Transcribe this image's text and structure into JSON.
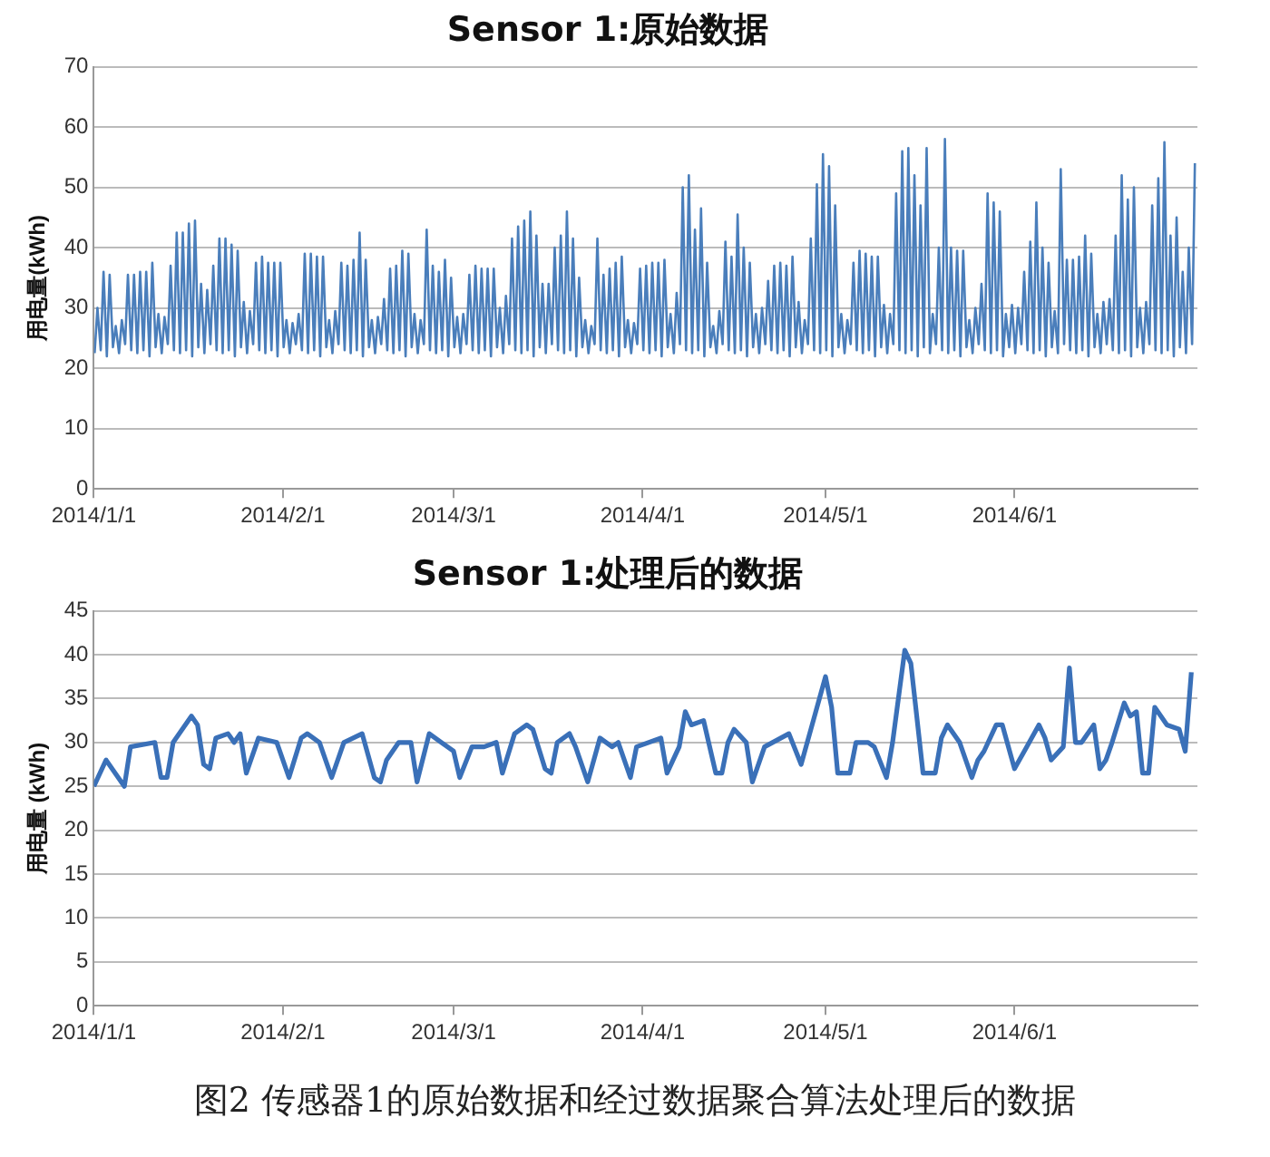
{
  "chart_data": [
    {
      "type": "line",
      "title": "Sensor 1:原始数据",
      "ylabel": "用电量(kWh)",
      "xlim": [
        "2014-01-01",
        "2014-07-01"
      ],
      "xticks": [
        {
          "value": "2014-01-01",
          "label": "2014/1/1"
        },
        {
          "value": "2014-02-01",
          "label": "2014/2/1"
        },
        {
          "value": "2014-03-01",
          "label": "2014/3/1"
        },
        {
          "value": "2014-04-01",
          "label": "2014/4/1"
        },
        {
          "value": "2014-05-01",
          "label": "2014/5/1"
        },
        {
          "value": "2014-06-01",
          "label": "2014/6/1"
        }
      ],
      "ylim": [
        0,
        70
      ],
      "yticks": [
        0,
        10,
        20,
        30,
        40,
        50,
        60,
        70
      ],
      "grid": "y",
      "marker": "none",
      "line_style": "solid",
      "series": [
        {
          "color": "#4a7ebb",
          "x": [
            "2014-01-01T03:00",
            "2014-01-01T14:00",
            "2014-01-02T03:00",
            "2014-01-02T14:00",
            "2014-01-03T03:00",
            "2014-01-03T14:00",
            "2014-01-04T03:00",
            "2014-01-04T14:00",
            "2014-01-05T03:00",
            "2014-01-05T14:00",
            "2014-01-06T03:00",
            "2014-01-06T14:00",
            "2014-01-07T03:00",
            "2014-01-07T14:00",
            "2014-01-08T03:00",
            "2014-01-08T14:00",
            "2014-01-09T03:00",
            "2014-01-09T14:00",
            "2014-01-10T03:00",
            "2014-01-10T14:00",
            "2014-01-11T03:00",
            "2014-01-11T14:00",
            "2014-01-12T03:00",
            "2014-01-12T14:00",
            "2014-01-13T03:00",
            "2014-01-13T14:00",
            "2014-01-14T03:00",
            "2014-01-14T14:00",
            "2014-01-15T03:00",
            "2014-01-15T14:00",
            "2014-01-16T03:00",
            "2014-01-16T14:00",
            "2014-01-17T03:00",
            "2014-01-17T14:00",
            "2014-01-18T03:00",
            "2014-01-18T14:00",
            "2014-01-19T03:00",
            "2014-01-19T14:00",
            "2014-01-20T03:00",
            "2014-01-20T14:00",
            "2014-01-21T03:00",
            "2014-01-21T14:00",
            "2014-01-22T03:00",
            "2014-01-22T14:00",
            "2014-01-23T03:00",
            "2014-01-23T14:00",
            "2014-01-24T03:00",
            "2014-01-24T14:00",
            "2014-01-25T03:00",
            "2014-01-25T14:00",
            "2014-01-26T03:00",
            "2014-01-26T14:00",
            "2014-01-27T03:00",
            "2014-01-27T14:00",
            "2014-01-28T03:00",
            "2014-01-28T14:00",
            "2014-01-29T03:00",
            "2014-01-29T14:00",
            "2014-01-30T03:00",
            "2014-01-30T14:00",
            "2014-01-31T03:00",
            "2014-01-31T14:00",
            "2014-02-01T03:00",
            "2014-02-01T14:00",
            "2014-02-02T03:00",
            "2014-02-02T14:00",
            "2014-02-03T03:00",
            "2014-02-03T14:00",
            "2014-02-04T03:00",
            "2014-02-04T14:00",
            "2014-02-05T03:00",
            "2014-02-05T14:00",
            "2014-02-06T03:00",
            "2014-02-06T14:00",
            "2014-02-07T03:00",
            "2014-02-07T14:00",
            "2014-02-08T03:00",
            "2014-02-08T14:00",
            "2014-02-09T03:00",
            "2014-02-09T14:00",
            "2014-02-10T03:00",
            "2014-02-10T14:00",
            "2014-02-11T03:00",
            "2014-02-11T14:00",
            "2014-02-12T03:00",
            "2014-02-12T14:00",
            "2014-02-13T03:00",
            "2014-02-13T14:00",
            "2014-02-14T03:00",
            "2014-02-14T14:00",
            "2014-02-15T03:00",
            "2014-02-15T14:00",
            "2014-02-16T03:00",
            "2014-02-16T14:00",
            "2014-02-17T03:00",
            "2014-02-17T14:00",
            "2014-02-18T03:00",
            "2014-02-18T14:00",
            "2014-02-19T03:00",
            "2014-02-19T14:00",
            "2014-02-20T03:00",
            "2014-02-20T14:00",
            "2014-02-21T03:00",
            "2014-02-21T14:00",
            "2014-02-22T03:00",
            "2014-02-22T14:00",
            "2014-02-23T03:00",
            "2014-02-23T14:00",
            "2014-02-24T03:00",
            "2014-02-24T14:00",
            "2014-02-25T03:00",
            "2014-02-25T14:00",
            "2014-02-26T03:00",
            "2014-02-26T14:00",
            "2014-02-27T03:00",
            "2014-02-27T14:00",
            "2014-02-28T03:00",
            "2014-02-28T14:00",
            "2014-03-01T03:00",
            "2014-03-01T14:00",
            "2014-03-02T03:00",
            "2014-03-02T14:00",
            "2014-03-03T03:00",
            "2014-03-03T14:00",
            "2014-03-04T03:00",
            "2014-03-04T14:00",
            "2014-03-05T03:00",
            "2014-03-05T14:00",
            "2014-03-06T03:00",
            "2014-03-06T14:00",
            "2014-03-07T03:00",
            "2014-03-07T14:00",
            "2014-03-08T03:00",
            "2014-03-08T14:00",
            "2014-03-09T03:00",
            "2014-03-09T14:00",
            "2014-03-10T03:00",
            "2014-03-10T14:00",
            "2014-03-11T03:00",
            "2014-03-11T14:00",
            "2014-03-12T03:00",
            "2014-03-12T14:00",
            "2014-03-13T03:00",
            "2014-03-13T14:00",
            "2014-03-14T03:00",
            "2014-03-14T14:00",
            "2014-03-15T03:00",
            "2014-03-15T14:00",
            "2014-03-16T03:00",
            "2014-03-16T14:00",
            "2014-03-17T03:00",
            "2014-03-17T14:00",
            "2014-03-18T03:00",
            "2014-03-18T14:00",
            "2014-03-19T03:00",
            "2014-03-19T14:00",
            "2014-03-20T03:00",
            "2014-03-20T14:00",
            "2014-03-21T03:00",
            "2014-03-21T14:00",
            "2014-03-22T03:00",
            "2014-03-22T14:00",
            "2014-03-23T03:00",
            "2014-03-23T14:00",
            "2014-03-24T03:00",
            "2014-03-24T14:00",
            "2014-03-25T03:00",
            "2014-03-25T14:00",
            "2014-03-26T03:00",
            "2014-03-26T14:00",
            "2014-03-27T03:00",
            "2014-03-27T14:00",
            "2014-03-28T03:00",
            "2014-03-28T14:00",
            "2014-03-29T03:00",
            "2014-03-29T14:00",
            "2014-03-30T03:00",
            "2014-03-30T14:00",
            "2014-03-31T03:00",
            "2014-03-31T14:00",
            "2014-04-01T03:00",
            "2014-04-01T14:00",
            "2014-04-02T03:00",
            "2014-04-02T14:00",
            "2014-04-03T03:00",
            "2014-04-03T14:00",
            "2014-04-04T03:00",
            "2014-04-04T14:00",
            "2014-04-05T03:00",
            "2014-04-05T14:00",
            "2014-04-06T03:00",
            "2014-04-06T14:00",
            "2014-04-07T03:00",
            "2014-04-07T14:00",
            "2014-04-08T03:00",
            "2014-04-08T14:00",
            "2014-04-09T03:00",
            "2014-04-09T14:00",
            "2014-04-10T03:00",
            "2014-04-10T14:00",
            "2014-04-11T03:00",
            "2014-04-11T14:00",
            "2014-04-12T03:00",
            "2014-04-12T14:00",
            "2014-04-13T03:00",
            "2014-04-13T14:00",
            "2014-04-14T03:00",
            "2014-04-14T14:00",
            "2014-04-15T03:00",
            "2014-04-15T14:00",
            "2014-04-16T03:00",
            "2014-04-16T14:00",
            "2014-04-17T03:00",
            "2014-04-17T14:00",
            "2014-04-18T03:00",
            "2014-04-18T14:00",
            "2014-04-19T03:00",
            "2014-04-19T14:00",
            "2014-04-20T03:00",
            "2014-04-20T14:00",
            "2014-04-21T03:00",
            "2014-04-21T14:00",
            "2014-04-22T03:00",
            "2014-04-22T14:00",
            "2014-04-23T03:00",
            "2014-04-23T14:00",
            "2014-04-24T03:00",
            "2014-04-24T14:00",
            "2014-04-25T03:00",
            "2014-04-25T14:00",
            "2014-04-26T03:00",
            "2014-04-26T14:00",
            "2014-04-27T03:00",
            "2014-04-27T14:00",
            "2014-04-28T03:00",
            "2014-04-28T14:00",
            "2014-04-29T03:00",
            "2014-04-29T14:00",
            "2014-04-30T03:00",
            "2014-04-30T14:00",
            "2014-05-01T03:00",
            "2014-05-01T14:00",
            "2014-05-02T03:00",
            "2014-05-02T14:00",
            "2014-05-03T03:00",
            "2014-05-03T14:00",
            "2014-05-04T03:00",
            "2014-05-04T14:00",
            "2014-05-05T03:00",
            "2014-05-05T14:00",
            "2014-05-06T03:00",
            "2014-05-06T14:00",
            "2014-05-07T03:00",
            "2014-05-07T14:00",
            "2014-05-08T03:00",
            "2014-05-08T14:00",
            "2014-05-09T03:00",
            "2014-05-09T14:00",
            "2014-05-10T03:00",
            "2014-05-10T14:00",
            "2014-05-11T03:00",
            "2014-05-11T14:00",
            "2014-05-12T03:00",
            "2014-05-12T14:00",
            "2014-05-13T03:00",
            "2014-05-13T14:00",
            "2014-05-14T03:00",
            "2014-05-14T14:00",
            "2014-05-15T03:00",
            "2014-05-15T14:00",
            "2014-05-16T03:00",
            "2014-05-16T14:00",
            "2014-05-17T03:00",
            "2014-05-17T14:00",
            "2014-05-18T03:00",
            "2014-05-18T14:00",
            "2014-05-19T03:00",
            "2014-05-19T14:00",
            "2014-05-20T03:00",
            "2014-05-20T14:00",
            "2014-05-21T03:00",
            "2014-05-21T14:00",
            "2014-05-22T03:00",
            "2014-05-22T14:00",
            "2014-05-23T03:00",
            "2014-05-23T14:00",
            "2014-05-24T03:00",
            "2014-05-24T14:00",
            "2014-05-25T03:00",
            "2014-05-25T14:00",
            "2014-05-26T03:00",
            "2014-05-26T14:00",
            "2014-05-27T03:00",
            "2014-05-27T14:00",
            "2014-05-28T03:00",
            "2014-05-28T14:00",
            "2014-05-29T03:00",
            "2014-05-29T14:00",
            "2014-05-30T03:00",
            "2014-05-30T14:00",
            "2014-05-31T03:00",
            "2014-05-31T14:00",
            "2014-06-01T03:00",
            "2014-06-01T14:00",
            "2014-06-02T03:00",
            "2014-06-02T14:00",
            "2014-06-03T03:00",
            "2014-06-03T14:00",
            "2014-06-04T03:00",
            "2014-06-04T14:00",
            "2014-06-05T03:00",
            "2014-06-05T14:00",
            "2014-06-06T03:00",
            "2014-06-06T14:00",
            "2014-06-07T03:00",
            "2014-06-07T14:00",
            "2014-06-08T03:00",
            "2014-06-08T14:00",
            "2014-06-09T03:00",
            "2014-06-09T14:00",
            "2014-06-10T03:00",
            "2014-06-10T14:00",
            "2014-06-11T03:00",
            "2014-06-11T14:00",
            "2014-06-12T03:00",
            "2014-06-12T14:00",
            "2014-06-13T03:00",
            "2014-06-13T14:00",
            "2014-06-14T03:00",
            "2014-06-14T14:00",
            "2014-06-15T03:00",
            "2014-06-15T14:00",
            "2014-06-16T03:00",
            "2014-06-16T14:00",
            "2014-06-17T03:00",
            "2014-06-17T14:00",
            "2014-06-18T03:00",
            "2014-06-18T14:00",
            "2014-06-19T03:00",
            "2014-06-19T14:00",
            "2014-06-20T03:00",
            "2014-06-20T14:00",
            "2014-06-21T03:00",
            "2014-06-21T14:00",
            "2014-06-22T03:00",
            "2014-06-22T14:00",
            "2014-06-23T03:00",
            "2014-06-23T14:00",
            "2014-06-24T03:00",
            "2014-06-24T14:00",
            "2014-06-25T03:00",
            "2014-06-25T14:00",
            "2014-06-26T03:00",
            "2014-06-26T14:00",
            "2014-06-27T03:00",
            "2014-06-27T14:00",
            "2014-06-28T03:00",
            "2014-06-28T14:00",
            "2014-06-29T03:00",
            "2014-06-29T14:00",
            "2014-06-30T03:00",
            "2014-06-30T14:00"
          ],
          "values": [
            22.5,
            30,
            23,
            36,
            22,
            35.5,
            23.5,
            27,
            22.5,
            28,
            24,
            35.5,
            23,
            35.5,
            22.5,
            36,
            23,
            36,
            22,
            37.5,
            23.5,
            29,
            22.5,
            28.5,
            24,
            37,
            23,
            42.5,
            22.5,
            42.5,
            23,
            44,
            22,
            44.5,
            23.5,
            34,
            22.5,
            33,
            24,
            37,
            23,
            41.5,
            22.5,
            41.5,
            23,
            40.5,
            22,
            39.5,
            23.5,
            31,
            22.5,
            29.5,
            24,
            37.5,
            23,
            38.5,
            22.5,
            37.5,
            23,
            37.5,
            22,
            37.5,
            23.5,
            28,
            22.5,
            27.5,
            24,
            29,
            23,
            39,
            22.5,
            39,
            23,
            38.5,
            22,
            38.5,
            23.5,
            28,
            22.5,
            29.5,
            24,
            37.5,
            23,
            37,
            22.5,
            38,
            23,
            42.5,
            22,
            38,
            23.5,
            28,
            22.5,
            28.5,
            24,
            31.5,
            23,
            36.5,
            22.5,
            37,
            23,
            39.5,
            22,
            39,
            23.5,
            29,
            22.5,
            28,
            24,
            43,
            23,
            37,
            22.5,
            36,
            23,
            38,
            22,
            35,
            23.5,
            28.5,
            22.5,
            29,
            24,
            35.5,
            23,
            37,
            22.5,
            36.5,
            23,
            36.5,
            22,
            36.5,
            23.5,
            30,
            22.5,
            32,
            24,
            41.5,
            23,
            43.5,
            22.5,
            44.5,
            23,
            46,
            22,
            42,
            23.5,
            34,
            22.5,
            34,
            24,
            40,
            23,
            42,
            22.5,
            46,
            23,
            41.5,
            22,
            35,
            23.5,
            28,
            22.5,
            27,
            24,
            41.5,
            23,
            35.5,
            22.5,
            36.5,
            23,
            37.5,
            22,
            38.5,
            23.5,
            28,
            22.5,
            27.5,
            24,
            36.5,
            23,
            37,
            22.5,
            37.5,
            23,
            37.5,
            22,
            38,
            23.5,
            29,
            22.5,
            32.5,
            24,
            50,
            23,
            52,
            22.5,
            43,
            23,
            46.5,
            22,
            37.5,
            23.5,
            27,
            22.5,
            29.5,
            24,
            41,
            23,
            38.5,
            22.5,
            45.5,
            23,
            40,
            22,
            37.5,
            23.5,
            29,
            22.5,
            30,
            24,
            34.5,
            23,
            37,
            22.5,
            37.5,
            23,
            37,
            22,
            38.5,
            23.5,
            31,
            22.5,
            28,
            24,
            41.5,
            23,
            50.5,
            22.5,
            55.5,
            23,
            53.5,
            22,
            47,
            23.5,
            29,
            22.5,
            28,
            24,
            37.5,
            23,
            39.5,
            22.5,
            39,
            23,
            38.5,
            22,
            38.5,
            23.5,
            30.5,
            22.5,
            29,
            24,
            49,
            23,
            56,
            22.5,
            56.5,
            23,
            52,
            22,
            47,
            23.5,
            56.5,
            22.5,
            29,
            24,
            40,
            23,
            58,
            22.5,
            40,
            23,
            39.5,
            22,
            39.5,
            23.5,
            28,
            22.5,
            30,
            24,
            34,
            23,
            49,
            22.5,
            47.5,
            23,
            46,
            22,
            29,
            23.5,
            30.5,
            22.5,
            30,
            24,
            36,
            23,
            41,
            22.5,
            47.5,
            23,
            40,
            22,
            37.5,
            23.5,
            29.5,
            22.5,
            53,
            24,
            38,
            23,
            38,
            22.5,
            38.5,
            23,
            42,
            22,
            39,
            23.5,
            29,
            22.5,
            31,
            24,
            31.5,
            23,
            42,
            22.5,
            52,
            23,
            48,
            22,
            50,
            23.5,
            30,
            22.5,
            31,
            24,
            47,
            23,
            51.5,
            22.5,
            57.5,
            23,
            42,
            22,
            45,
            23.5,
            36,
            22.5,
            40,
            24,
            54
          ]
        }
      ]
    },
    {
      "type": "line",
      "title": "Sensor 1:处理后的数据",
      "ylabel": "用电量 (kWh)",
      "xlim": [
        "2014-01-01",
        "2014-07-01"
      ],
      "xticks": [
        {
          "value": "2014-01-01",
          "label": "2014/1/1"
        },
        {
          "value": "2014-02-01",
          "label": "2014/2/1"
        },
        {
          "value": "2014-03-01",
          "label": "2014/3/1"
        },
        {
          "value": "2014-04-01",
          "label": "2014/4/1"
        },
        {
          "value": "2014-05-01",
          "label": "2014/5/1"
        },
        {
          "value": "2014-06-01",
          "label": "2014/6/1"
        }
      ],
      "ylim": [
        0,
        45
      ],
      "yticks": [
        0,
        5,
        10,
        15,
        20,
        25,
        30,
        35,
        40,
        45
      ],
      "grid": "y",
      "marker": "none",
      "line_style": "solid",
      "annotations": [
        "图2  传感器1的原始数据和经过数据聚合算法处理后的数据"
      ],
      "series": [
        {
          "color": "#3a70b8",
          "x": [
            "2014-01-01",
            "2014-01-03",
            "2014-01-06",
            "2014-01-07",
            "2014-01-11",
            "2014-01-12",
            "2014-01-13",
            "2014-01-14",
            "2014-01-17",
            "2014-01-18",
            "2014-01-19",
            "2014-01-20",
            "2014-01-21",
            "2014-01-23",
            "2014-01-24",
            "2014-01-25",
            "2014-01-26",
            "2014-01-28",
            "2014-01-31",
            "2014-02-02",
            "2014-02-04",
            "2014-02-05",
            "2014-02-07",
            "2014-02-09",
            "2014-02-11",
            "2014-02-14",
            "2014-02-16",
            "2014-02-17",
            "2014-02-18",
            "2014-02-20",
            "2014-02-22",
            "2014-02-23",
            "2014-02-25",
            "2014-02-27",
            "2014-03-01",
            "2014-03-02",
            "2014-03-04",
            "2014-03-06",
            "2014-03-08",
            "2014-03-09",
            "2014-03-11",
            "2014-03-13",
            "2014-03-14",
            "2014-03-16",
            "2014-03-17",
            "2014-03-18",
            "2014-03-20",
            "2014-03-21",
            "2014-03-23",
            "2014-03-25",
            "2014-03-27",
            "2014-03-28",
            "2014-03-30",
            "2014-03-31",
            "2014-04-04",
            "2014-04-05",
            "2014-04-07",
            "2014-04-08",
            "2014-04-09",
            "2014-04-11",
            "2014-04-13",
            "2014-04-14",
            "2014-04-15",
            "2014-04-16",
            "2014-04-18",
            "2014-04-19",
            "2014-04-21",
            "2014-04-25",
            "2014-04-27",
            "2014-04-29",
            "2014-05-01",
            "2014-05-02",
            "2014-05-03",
            "2014-05-05",
            "2014-05-06",
            "2014-05-08",
            "2014-05-09",
            "2014-05-11",
            "2014-05-12",
            "2014-05-14",
            "2014-05-15",
            "2014-05-17",
            "2014-05-19",
            "2014-05-20",
            "2014-05-21",
            "2014-05-23",
            "2014-05-25",
            "2014-05-26",
            "2014-05-27",
            "2014-05-29",
            "2014-05-30",
            "2014-06-01",
            "2014-06-03",
            "2014-06-05",
            "2014-06-06",
            "2014-06-07",
            "2014-06-09",
            "2014-06-10",
            "2014-06-11",
            "2014-06-12",
            "2014-06-14",
            "2014-06-15",
            "2014-06-16",
            "2014-06-17",
            "2014-06-19",
            "2014-06-20",
            "2014-06-21",
            "2014-06-22",
            "2014-06-23",
            "2014-06-24",
            "2014-06-26",
            "2014-06-28",
            "2014-06-29",
            "2014-06-30"
          ],
          "values": [
            25,
            28,
            25,
            29.5,
            30,
            26,
            26,
            30,
            33,
            32,
            27.5,
            27,
            30.5,
            31,
            30,
            31,
            26.5,
            30.5,
            30,
            26,
            30.5,
            31,
            30,
            26,
            30,
            31,
            26,
            25.5,
            28,
            30,
            30,
            25.5,
            31,
            30,
            29,
            26,
            29.5,
            29.5,
            30,
            26.5,
            31,
            32,
            31.5,
            27,
            26.5,
            30,
            31,
            29.5,
            25.5,
            30.5,
            29.5,
            30,
            26,
            29.5,
            30.5,
            26.5,
            29.5,
            33.5,
            32,
            32.5,
            26.5,
            26.5,
            30,
            31.5,
            30,
            25.5,
            29.5,
            31,
            27.5,
            32.5,
            37.5,
            34,
            26.5,
            26.5,
            30,
            30,
            29.5,
            26,
            30,
            40.5,
            39,
            26.5,
            26.5,
            30.5,
            32,
            30,
            26,
            28,
            29,
            32,
            32,
            27,
            29.5,
            32,
            30.5,
            28,
            29.5,
            38.5,
            30,
            30,
            32,
            27,
            28,
            30,
            34.5,
            33,
            33.5,
            26.5,
            26.5,
            34,
            32,
            31.5,
            29,
            38
          ]
        }
      ]
    }
  ]
}
